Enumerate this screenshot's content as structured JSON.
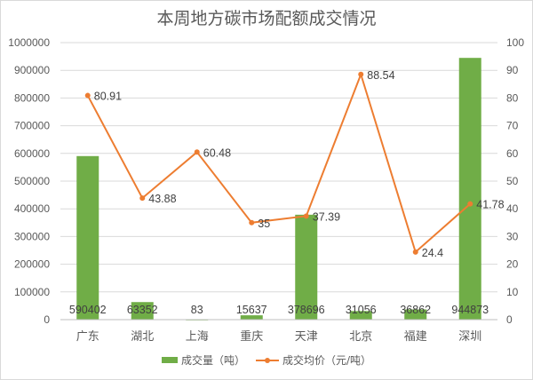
{
  "chart_data": {
    "type": "bar+line",
    "title": "本周地方碳市场配额成交情况",
    "categories": [
      "广东",
      "湖北",
      "上海",
      "重庆",
      "天津",
      "北京",
      "福建",
      "深圳"
    ],
    "series": [
      {
        "name": "成交量（吨）",
        "type": "bar",
        "axis": "left",
        "color": "#70ad47",
        "values": [
          590402,
          63352,
          83,
          15637,
          378696,
          31056,
          36862,
          944873
        ]
      },
      {
        "name": "成交均价（元/吨）",
        "type": "line",
        "axis": "right",
        "color": "#ed7d31",
        "values": [
          80.91,
          43.88,
          60.48,
          35,
          37.39,
          88.54,
          24.4,
          41.78
        ]
      }
    ],
    "ylim_left": [
      0,
      1000000
    ],
    "ylim_right": [
      0,
      100
    ],
    "yticks_left": [
      "0",
      "100000",
      "200000",
      "300000",
      "400000",
      "500000",
      "600000",
      "700000",
      "800000",
      "900000",
      "1000000"
    ],
    "yticks_right": [
      "0",
      "10",
      "20",
      "30",
      "40",
      "50",
      "60",
      "70",
      "80",
      "90",
      "100"
    ],
    "grid": true,
    "legend_position": "bottom",
    "bar_labels": [
      "590402",
      "63352",
      "83",
      "15637",
      "378696",
      "31056",
      "36862",
      "944873"
    ],
    "line_labels": [
      "80.91",
      "43.88",
      "60.48",
      "35",
      "37.39",
      "88.54",
      "24.4",
      "41.78"
    ]
  },
  "legend": {
    "bar_label": "成交量（吨）",
    "line_label": "成交均价（元/吨）"
  }
}
